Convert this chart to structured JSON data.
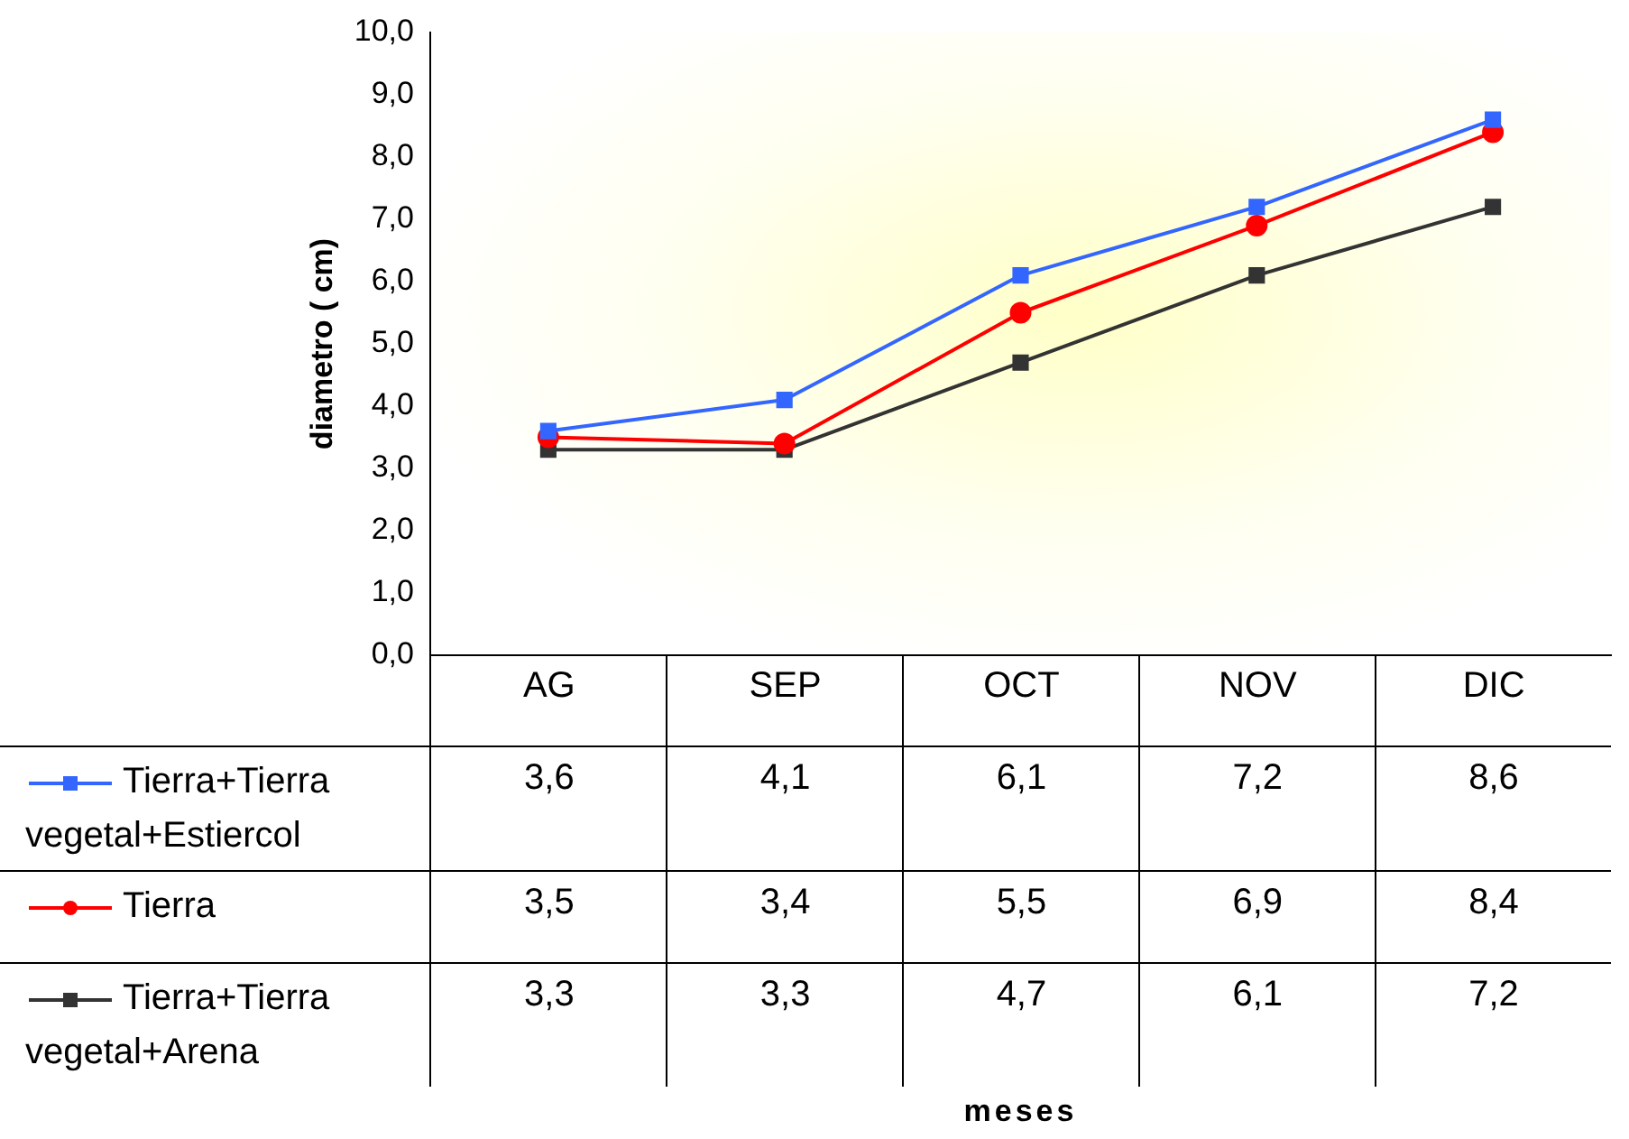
{
  "chart_data": {
    "type": "line",
    "ylabel": "diametro ( cm)",
    "annotations": [
      "meses"
    ],
    "categories": [
      "AG",
      "SEP",
      "OCT",
      "NOV",
      "DIC"
    ],
    "series": [
      {
        "name": "Tierra+Tierra vegetal+Estiercol",
        "color": "#3366ff",
        "marker": "square",
        "values": [
          3.6,
          4.1,
          6.1,
          7.2,
          8.6
        ],
        "value_labels": [
          "3,6",
          "4,1",
          "6,1",
          "7,2",
          "8,6"
        ]
      },
      {
        "name": "Tierra",
        "color": "#ff0000",
        "marker": "circle",
        "values": [
          3.5,
          3.4,
          5.5,
          6.9,
          8.4
        ],
        "value_labels": [
          "3,5",
          "3,4",
          "5,5",
          "6,9",
          "8,4"
        ]
      },
      {
        "name": "Tierra+Tierra vegetal+Arena",
        "color": "#333333",
        "marker": "square",
        "values": [
          3.3,
          3.3,
          4.7,
          6.1,
          7.2
        ],
        "value_labels": [
          "3,3",
          "3,3",
          "4,7",
          "6,1",
          "7,2"
        ]
      }
    ],
    "ylim": [
      0,
      10
    ],
    "yticks": [
      {
        "value": 0,
        "label": "0,0"
      },
      {
        "value": 1,
        "label": "1,0"
      },
      {
        "value": 2,
        "label": "2,0"
      },
      {
        "value": 3,
        "label": "3,0"
      },
      {
        "value": 4,
        "label": "4,0"
      },
      {
        "value": 5,
        "label": "5,0"
      },
      {
        "value": 6,
        "label": "6,0"
      },
      {
        "value": 7,
        "label": "7,0"
      },
      {
        "value": 8,
        "label": "8,0"
      },
      {
        "value": 9,
        "label": "9,0"
      },
      {
        "value": 10,
        "label": "10,0"
      }
    ],
    "legend": "bottom"
  }
}
